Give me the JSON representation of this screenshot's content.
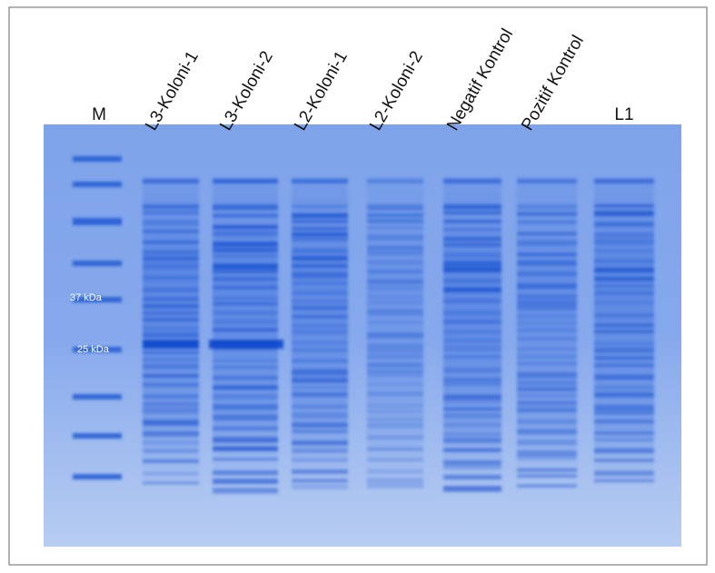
{
  "figure": {
    "lanes": [
      "M",
      "L3-Koloni-1",
      "L3-Koloni-2",
      "L2-Koloni-1",
      "L2-Koloni-2",
      "Negatif Kontrol",
      "Pozitif Kontrol",
      "L1"
    ],
    "marker_labels": [
      "37 kDa",
      "25 kDa"
    ]
  }
}
